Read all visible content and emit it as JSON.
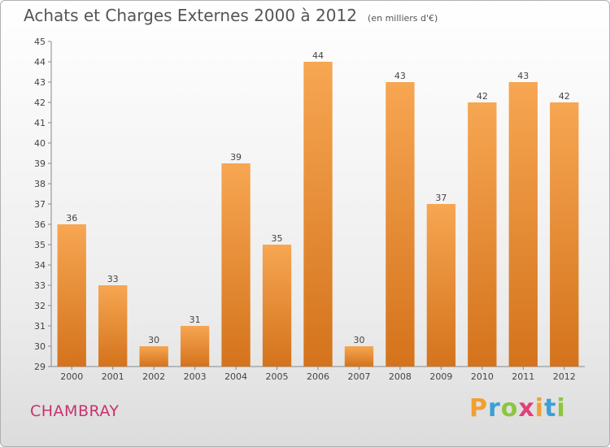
{
  "chart_data": {
    "type": "bar",
    "title": "Achats et Charges Externes 2000 à 2012",
    "subtitle": "(en milliers d'€)",
    "xlabel": "",
    "ylabel": "",
    "categories": [
      "2000",
      "2001",
      "2002",
      "2003",
      "2004",
      "2005",
      "2006",
      "2007",
      "2008",
      "2009",
      "2010",
      "2011",
      "2012"
    ],
    "values": [
      36,
      33,
      30,
      31,
      39,
      35,
      44,
      30,
      43,
      37,
      42,
      43,
      42
    ],
    "ylim": [
      29,
      45
    ],
    "yticks": [
      29,
      30,
      31,
      32,
      33,
      34,
      35,
      36,
      37,
      38,
      39,
      40,
      41,
      42,
      43,
      44,
      45
    ],
    "grid": false,
    "legend": "none",
    "bar_color": "#f5a04a",
    "bar_color_dark": "#d4731c"
  },
  "footer": {
    "commune": "CHAMBRAY",
    "commune_color": "#c8326e",
    "logo_letters": [
      "P",
      "r",
      "o",
      "x",
      "i",
      "t",
      "i"
    ],
    "logo_colors": [
      "#f0a030",
      "#3aa0d8",
      "#8cc63f",
      "#e0407a",
      "#f0a030",
      "#3aa0d8",
      "#8cc63f"
    ]
  }
}
